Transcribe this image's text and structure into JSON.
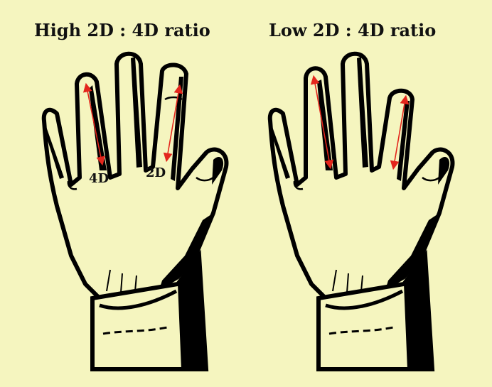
{
  "panels": [
    {
      "title": "High 2D : 4D ratio",
      "labels": {
        "ring": "4D",
        "index": "2D"
      },
      "lengths": {
        "index": 1.0,
        "ring": 1.0
      }
    },
    {
      "title": "Low 2D : 4D ratio",
      "labels": {
        "ring": "",
        "index": ""
      },
      "lengths": {
        "index": 0.9,
        "ring": 1.1
      }
    }
  ],
  "colors": {
    "background": "#f5f5bf",
    "outline": "#000000",
    "arrow": "#e3261c"
  }
}
